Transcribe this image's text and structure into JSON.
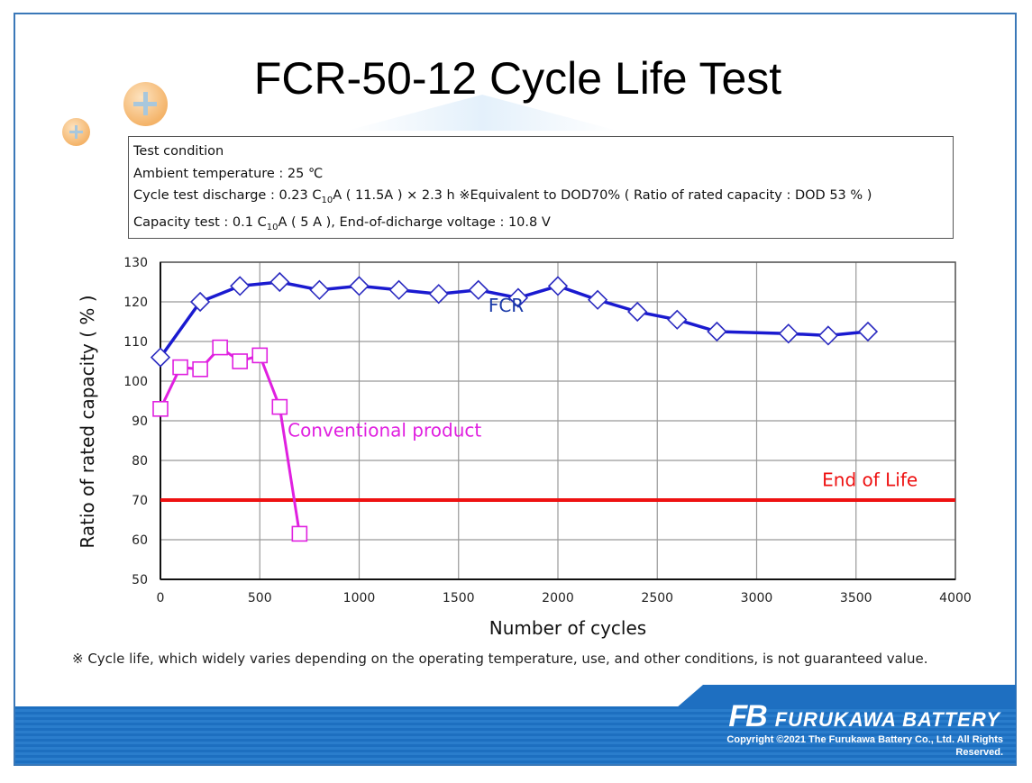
{
  "title": "FCR-50-12 Cycle Life Test",
  "test_condition": {
    "heading": "Test condition",
    "ambient": "Ambient temperature : 25 ℃",
    "discharge_prefix": "Cycle test discharge : 0.23 C",
    "discharge_sub": "10",
    "discharge_suffix": "A ( 11.5A ) × 2.3 h ※Equivalent to DOD70% ( Ratio of rated capacity : DOD 53 % )",
    "capacity_prefix": "Capacity test : 0.1 C",
    "capacity_sub": "10",
    "capacity_suffix": "A ( 5 A ), End-of-dicharge voltage : 10.8 V"
  },
  "footnote": "※ Cycle life, which widely varies depending on the operating temperature, use, and other conditions, is not guaranteed value.",
  "footer": {
    "logo": "FB",
    "brand": "FURUKAWA BATTERY",
    "copyright": "Copyright ©2021 The Furukawa Battery Co., Ltd. All Rights Reserved."
  },
  "chart_data": {
    "type": "line",
    "title": "",
    "xlabel": "Number of cycles",
    "ylabel": "Ratio of rated capacity ( % )",
    "xlim": [
      0,
      4000
    ],
    "ylim": [
      50,
      130
    ],
    "xticks": [
      0,
      500,
      1000,
      1500,
      2000,
      2500,
      3000,
      3500,
      4000
    ],
    "yticks": [
      50,
      60,
      70,
      80,
      90,
      100,
      110,
      120,
      130
    ],
    "grid": true,
    "series": [
      {
        "name": "FCR",
        "color": "#1a1ad0",
        "marker": "diamond",
        "x": [
          0,
          200,
          400,
          600,
          800,
          1000,
          1200,
          1400,
          1600,
          1800,
          2000,
          2200,
          2400,
          2600,
          2800,
          3160,
          3360,
          3560
        ],
        "y": [
          106,
          120,
          124,
          125,
          123,
          124,
          123,
          122,
          123,
          121,
          124,
          120.5,
          117.5,
          115.5,
          112.5,
          112,
          111.5,
          112.5
        ]
      },
      {
        "name": "Conventional product",
        "color": "#e020e0",
        "marker": "square",
        "x": [
          0,
          100,
          200,
          300,
          400,
          500,
          600,
          700
        ],
        "y": [
          93,
          103.5,
          103,
          108.5,
          105,
          106.5,
          93.5,
          61.5
        ]
      }
    ],
    "reference_lines": [
      {
        "name": "End of Life",
        "y": 70,
        "color": "#ee1111"
      }
    ],
    "annotations": [
      {
        "text": "FCR",
        "color": "#1a3aa8",
        "x": 1650,
        "y": 117.5
      },
      {
        "text": "Conventional product",
        "color": "#e020e0",
        "x": 640,
        "y": 86
      },
      {
        "text": "End of Life",
        "color": "#ee1111",
        "x": 3570,
        "y": 73.5
      }
    ]
  }
}
